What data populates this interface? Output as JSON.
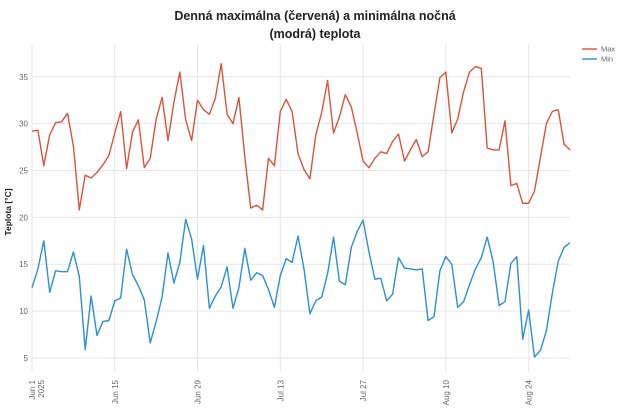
{
  "chart_data": {
    "type": "line",
    "title_line1": "Denná maximálna (červená) a minimálna nočná",
    "title_line2": "(modrá) teplota",
    "xlabel": "",
    "ylabel": "Teplota [°C]",
    "x_start": "2025-06-01",
    "x_end": "2025-08-31",
    "ylim": [
      3.5,
      38.5
    ],
    "yticks": [
      5,
      10,
      15,
      20,
      25,
      30,
      35
    ],
    "xticks": [
      {
        "date": "2025-06-01",
        "label": "Jun 1",
        "label2": "2025"
      },
      {
        "date": "2025-06-15",
        "label": "Jun 15",
        "label2": ""
      },
      {
        "date": "2025-06-29",
        "label": "Jun 29",
        "label2": ""
      },
      {
        "date": "2025-07-13",
        "label": "Jul 13",
        "label2": ""
      },
      {
        "date": "2025-07-27",
        "label": "Jul 27",
        "label2": ""
      },
      {
        "date": "2025-08-10",
        "label": "Aug 10",
        "label2": ""
      },
      {
        "date": "2025-08-24",
        "label": "Aug 24",
        "label2": ""
      }
    ],
    "grid": true,
    "legend_position": "top-right",
    "series": [
      {
        "name": "Max",
        "color": "#d9543a",
        "values": [
          29.2,
          29.3,
          25.5,
          28.8,
          30.1,
          30.2,
          31.1,
          27.6,
          20.8,
          24.5,
          24.2,
          24.8,
          25.6,
          26.6,
          29.0,
          31.3,
          25.2,
          29.1,
          30.4,
          25.3,
          26.3,
          30.5,
          32.8,
          28.2,
          32.3,
          35.5,
          30.4,
          28.2,
          32.5,
          31.5,
          31.0,
          32.7,
          36.4,
          31.0,
          30.0,
          32.8,
          26.5,
          21.0,
          21.3,
          20.8,
          26.3,
          25.5,
          31.3,
          32.6,
          31.3,
          26.8,
          25.1,
          24.1,
          28.8,
          31.2,
          34.6,
          29.0,
          30.7,
          33.1,
          31.8,
          29.0,
          26.0,
          25.3,
          26.3,
          27.0,
          26.8,
          28.1,
          28.9,
          26.0,
          27.2,
          28.3,
          26.5,
          27.0,
          31.0,
          34.9,
          35.5,
          29.0,
          30.5,
          33.4,
          35.5,
          36.1,
          35.9,
          27.4,
          27.2,
          27.2,
          30.3,
          23.4,
          23.6,
          21.5,
          21.5,
          22.8,
          26.4,
          30.0,
          31.3,
          31.5,
          27.8,
          27.2
        ]
      },
      {
        "name": "Min",
        "color": "#2b8fd3",
        "values": [
          12.5,
          14.5,
          17.5,
          12.0,
          14.3,
          14.2,
          14.2,
          16.3,
          13.7,
          5.9,
          11.6,
          7.4,
          8.9,
          9.0,
          11.1,
          11.4,
          16.6,
          13.9,
          12.7,
          11.2,
          6.6,
          8.9,
          11.5,
          16.2,
          13.0,
          15.2,
          19.8,
          17.7,
          13.4,
          17.0,
          10.3,
          11.6,
          12.6,
          14.7,
          10.3,
          12.5,
          16.7,
          13.3,
          14.1,
          13.8,
          12.3,
          10.4,
          13.8,
          15.6,
          15.2,
          18.0,
          14.5,
          9.7,
          11.1,
          11.5,
          14.0,
          17.9,
          13.2,
          12.8,
          16.8,
          18.5,
          19.7,
          16.3,
          13.4,
          13.5,
          11.1,
          11.8,
          15.7,
          14.6,
          14.5,
          14.4,
          14.5,
          9.0,
          9.4,
          14.3,
          15.8,
          15.0,
          10.4,
          11.0,
          12.8,
          14.5,
          15.7,
          17.9,
          15.3,
          10.6,
          11.0,
          15.1,
          15.8,
          7.0,
          10.1,
          5.1,
          5.8,
          7.9,
          11.9,
          15.3,
          16.8,
          17.3
        ]
      }
    ]
  }
}
